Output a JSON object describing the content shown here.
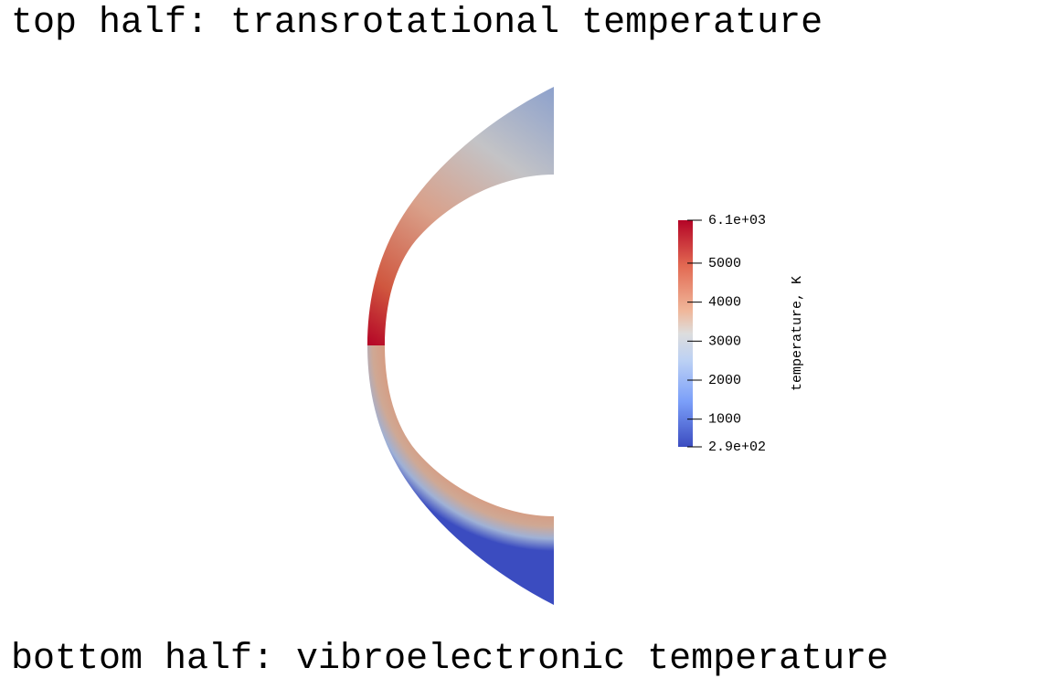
{
  "captions": {
    "top": "top half: transrotational temperature",
    "bottom": "bottom half: vibroelectronic temperature"
  },
  "colorbar": {
    "title": "temperature, K",
    "min": 290,
    "max": 6100,
    "colormap": "cool-to-warm",
    "colors": {
      "low": "#3b4cc0",
      "mid": "#dddddd",
      "high": "#b40426"
    },
    "ticks": [
      {
        "value": 6100,
        "label": "6.1e+03"
      },
      {
        "value": 5000,
        "label": "5000"
      },
      {
        "value": 4000,
        "label": "4000"
      },
      {
        "value": 3000,
        "label": "3000"
      },
      {
        "value": 2000,
        "label": "2000"
      },
      {
        "value": 1000,
        "label": "1000"
      },
      {
        "value": 290,
        "label": "2.9e+02"
      }
    ]
  },
  "shock_layer": {
    "top_half": {
      "name": "transrotational temperature",
      "stagnation_value": 6100,
      "edge_value": 3200
    },
    "bottom_half": {
      "name": "vibroelectronic temperature",
      "inner_value": 3900,
      "outer_value": 290
    }
  }
}
